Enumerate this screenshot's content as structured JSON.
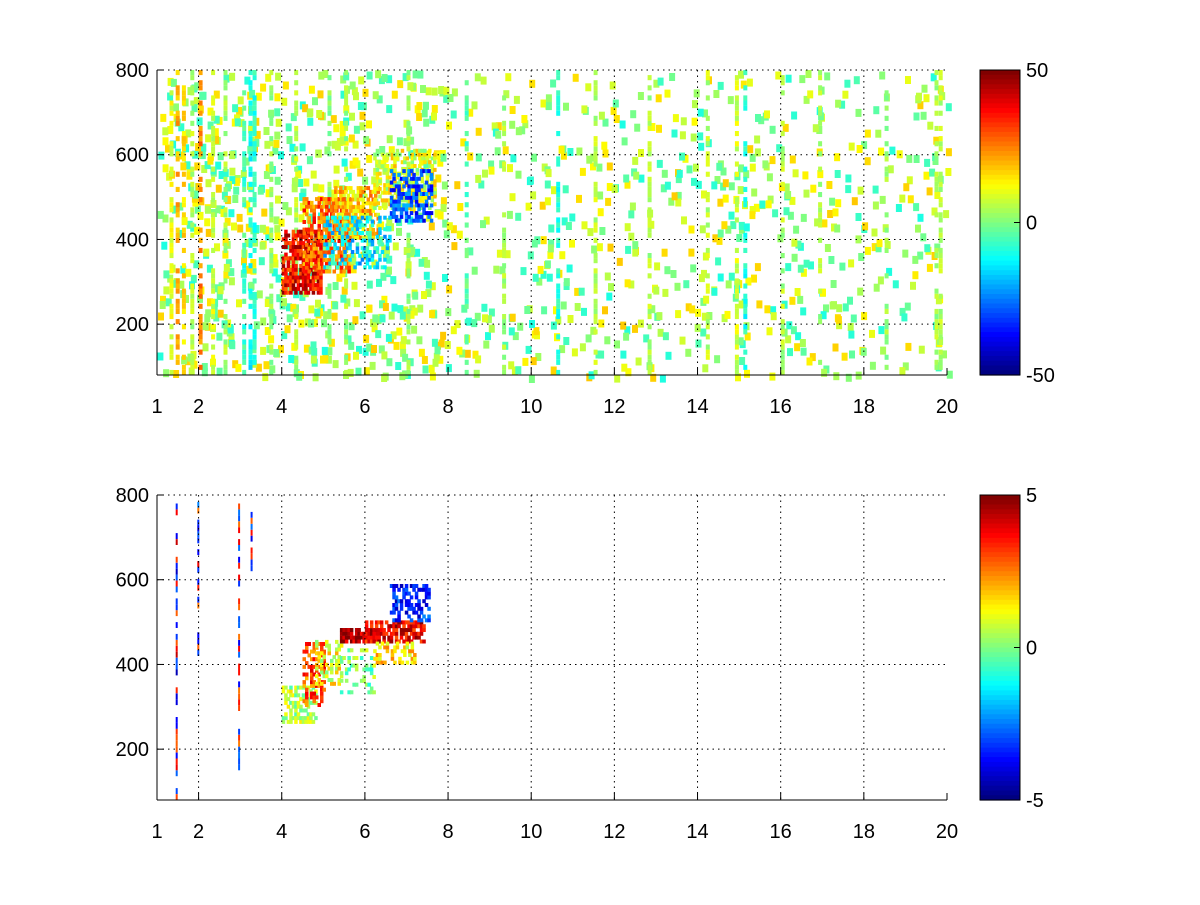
{
  "chart_data": [
    {
      "type": "heatmap",
      "title": "",
      "xlabel": "",
      "ylabel": "",
      "xlim": [
        1,
        20
      ],
      "ylim": [
        80,
        800
      ],
      "x_ticks": [
        1,
        2,
        4,
        6,
        8,
        10,
        12,
        14,
        16,
        18,
        20
      ],
      "y_ticks": [
        200,
        400,
        600,
        800
      ],
      "grid": true,
      "colorbar": {
        "min": -50,
        "max": 50,
        "ticks": [
          50,
          0,
          -50
        ],
        "colormap": "jet"
      },
      "regions": [
        {
          "x": [
            4.0,
            4.9
          ],
          "y": [
            270,
            420
          ],
          "value": 38,
          "density": 0.75
        },
        {
          "x": [
            4.5,
            5.6
          ],
          "y": [
            320,
            500
          ],
          "value": 28,
          "density": 0.6
        },
        {
          "x": [
            5.2,
            6.3
          ],
          "y": [
            400,
            520
          ],
          "value": 18,
          "density": 0.6
        },
        {
          "x": [
            6.2,
            7.7
          ],
          "y": [
            470,
            610
          ],
          "value": 10,
          "density": 0.55
        },
        {
          "x": [
            6.6,
            7.6
          ],
          "y": [
            440,
            560
          ],
          "value": -30,
          "density": 0.55
        },
        {
          "x": [
            5.0,
            6.6
          ],
          "y": [
            330,
            450
          ],
          "value": -14,
          "density": 0.35
        }
      ],
      "stripes": [
        {
          "x": 1.3,
          "value": 10
        },
        {
          "x": 1.45,
          "value": 20
        },
        {
          "x": 1.6,
          "value": 15
        },
        {
          "x": 1.8,
          "value": 5
        },
        {
          "x": 2.0,
          "value": 25
        },
        {
          "x": 2.3,
          "value": 8
        },
        {
          "x": 2.6,
          "value": 4
        },
        {
          "x": 3.05,
          "value": -6
        },
        {
          "x": 3.2,
          "value": -12
        },
        {
          "x": 3.3,
          "value": -9
        },
        {
          "x": 3.7,
          "value": 3
        },
        {
          "x": 4.3,
          "value": 6
        },
        {
          "x": 5.1,
          "value": 2
        },
        {
          "x": 5.5,
          "value": 3
        },
        {
          "x": 7.0,
          "value": 2
        },
        {
          "x": 8.4,
          "value": -4
        },
        {
          "x": 9.3,
          "value": 4
        },
        {
          "x": 10.6,
          "value": -10
        },
        {
          "x": 11.5,
          "value": 6
        },
        {
          "x": 12.8,
          "value": 5
        },
        {
          "x": 14.2,
          "value": 6
        },
        {
          "x": 14.9,
          "value": 8
        },
        {
          "x": 15.1,
          "value": -10
        },
        {
          "x": 16.0,
          "value": 5
        },
        {
          "x": 16.9,
          "value": 4
        },
        {
          "x": 18.5,
          "value": 3
        },
        {
          "x": 19.7,
          "value": 4
        },
        {
          "x": 19.8,
          "value": 6
        }
      ]
    },
    {
      "type": "heatmap",
      "title": "",
      "xlabel": "",
      "ylabel": "",
      "xlim": [
        1,
        20
      ],
      "ylim": [
        80,
        800
      ],
      "x_ticks": [
        1,
        2,
        4,
        6,
        8,
        10,
        12,
        14,
        16,
        18,
        20
      ],
      "y_ticks": [
        200,
        400,
        600,
        800
      ],
      "grid": true,
      "colorbar": {
        "min": -5,
        "max": 5,
        "ticks": [
          5,
          0,
          -5
        ],
        "colormap": "jet"
      },
      "regions": [
        {
          "x": [
            4.0,
            4.8
          ],
          "y": [
            260,
            350
          ],
          "value": 0.5,
          "density": 0.55
        },
        {
          "x": [
            4.5,
            5.0
          ],
          "y": [
            300,
            450
          ],
          "value": 3,
          "density": 0.45
        },
        {
          "x": [
            4.8,
            5.4
          ],
          "y": [
            350,
            450
          ],
          "value": 1,
          "density": 0.35
        },
        {
          "x": [
            5.4,
            6.3
          ],
          "y": [
            450,
            480
          ],
          "value": 4.5,
          "density": 0.8
        },
        {
          "x": [
            6.0,
            7.4
          ],
          "y": [
            450,
            500
          ],
          "value": 4,
          "density": 0.7
        },
        {
          "x": [
            6.6,
            7.5
          ],
          "y": [
            500,
            590
          ],
          "value": -3.5,
          "density": 0.55
        },
        {
          "x": [
            5.4,
            6.2
          ],
          "y": [
            330,
            430
          ],
          "value": 0,
          "density": 0.3
        },
        {
          "x": [
            6.2,
            7.2
          ],
          "y": [
            400,
            450
          ],
          "value": 1.5,
          "density": 0.4
        }
      ],
      "stripes": [
        {
          "x": 1.45,
          "y": [
            80,
            780
          ],
          "value": 4.5
        },
        {
          "x": 1.97,
          "y": [
            420,
            780
          ],
          "value": -4
        },
        {
          "x": 2.95,
          "y": [
            150,
            780
          ],
          "value": 4
        },
        {
          "x": 3.25,
          "y": [
            620,
            760
          ],
          "value": -4
        }
      ]
    }
  ]
}
